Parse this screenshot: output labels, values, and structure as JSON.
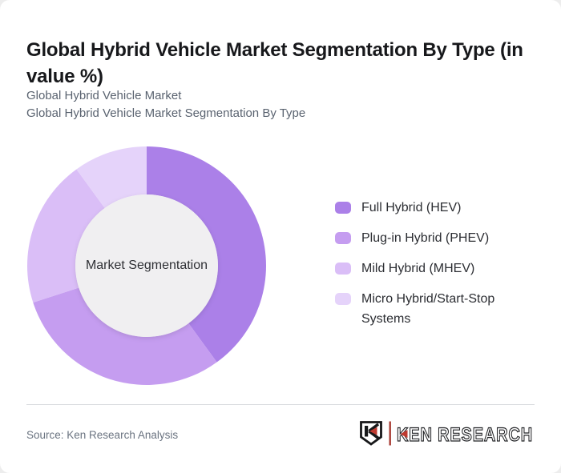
{
  "header": {
    "title": "Global Hybrid Vehicle Market Segmentation By Type (in value %)",
    "subtitles": [
      "Global Hybrid Vehicle Market",
      "Global Hybrid Vehicle Market Segmentation By Type"
    ]
  },
  "chart_data": {
    "type": "pie",
    "variant": "donut",
    "title": "Global Hybrid Vehicle Market Segmentation By Type (in value %)",
    "center_label": "Market Segmentation",
    "categories": [
      "Full Hybrid (HEV)",
      "Plug-in Hybrid (PHEV)",
      "Mild Hybrid (MHEV)",
      "Micro Hybrid/Start-Stop Systems"
    ],
    "values": [
      40,
      30,
      20,
      10
    ],
    "value_unit": "%",
    "colors": [
      "#ab80e8",
      "#c59df0",
      "#dabef7",
      "#e5d3fa"
    ],
    "center_color": "#f0eff1",
    "start_angle_deg": 0,
    "direction": "clockwise",
    "legend_position": "right"
  },
  "footer": {
    "source": "Source: Ken Research Analysis",
    "brand": {
      "name": "KEN RESEARCH",
      "accent": "#bf3a30"
    }
  }
}
